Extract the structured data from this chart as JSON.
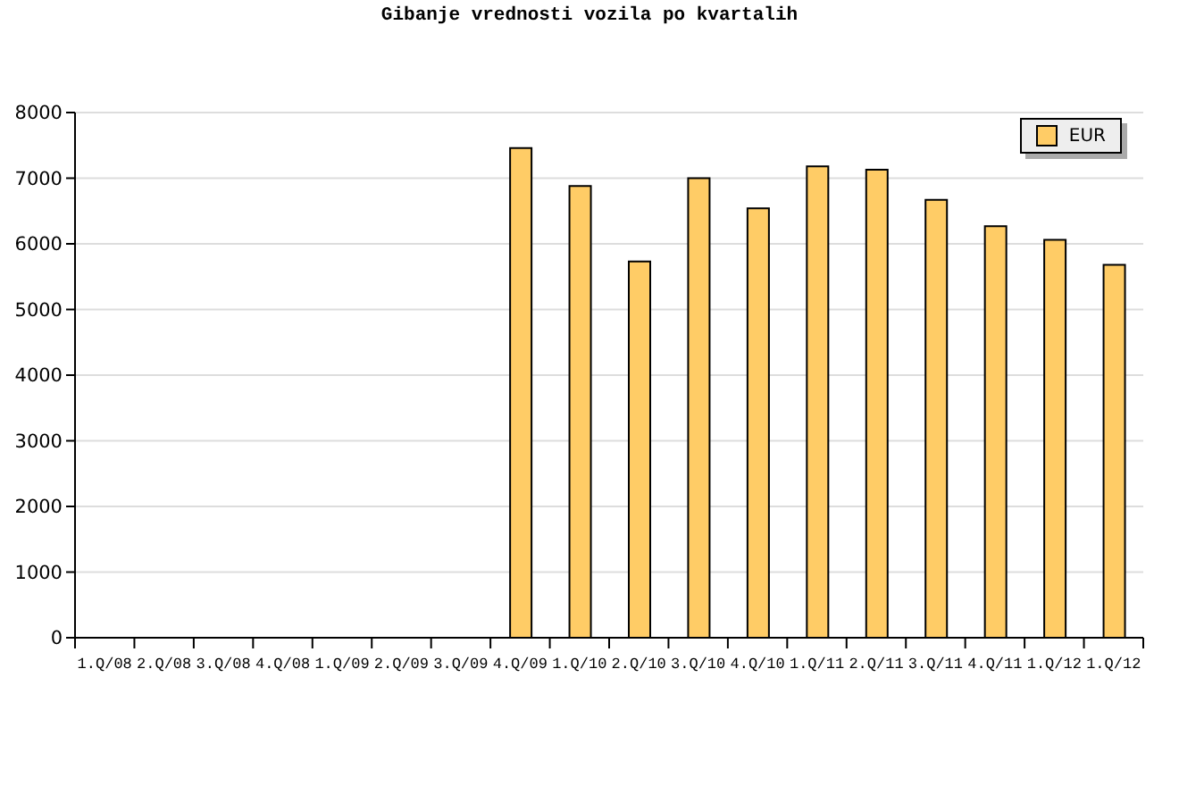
{
  "chart_data": {
    "type": "bar",
    "title": "Gibanje vrednosti vozila po kvartalih",
    "categories": [
      "1.Q/08",
      "2.Q/08",
      "3.Q/08",
      "4.Q/08",
      "1.Q/09",
      "2.Q/09",
      "3.Q/09",
      "4.Q/09",
      "1.Q/10",
      "2.Q/10",
      "3.Q/10",
      "4.Q/10",
      "1.Q/11",
      "2.Q/11",
      "3.Q/11",
      "4.Q/11",
      "1.Q/12",
      "1.Q/12"
    ],
    "series": [
      {
        "name": "EUR",
        "color": "#ffcc66",
        "values": [
          null,
          null,
          null,
          null,
          null,
          null,
          null,
          7460,
          6880,
          5730,
          7000,
          6540,
          7180,
          7130,
          6670,
          6270,
          6060,
          5680
        ]
      }
    ],
    "ylim": [
      0,
      8000
    ],
    "yticks": [
      0,
      1000,
      2000,
      3000,
      4000,
      5000,
      6000,
      7000,
      8000
    ],
    "grid": "y",
    "legend": "top right"
  }
}
